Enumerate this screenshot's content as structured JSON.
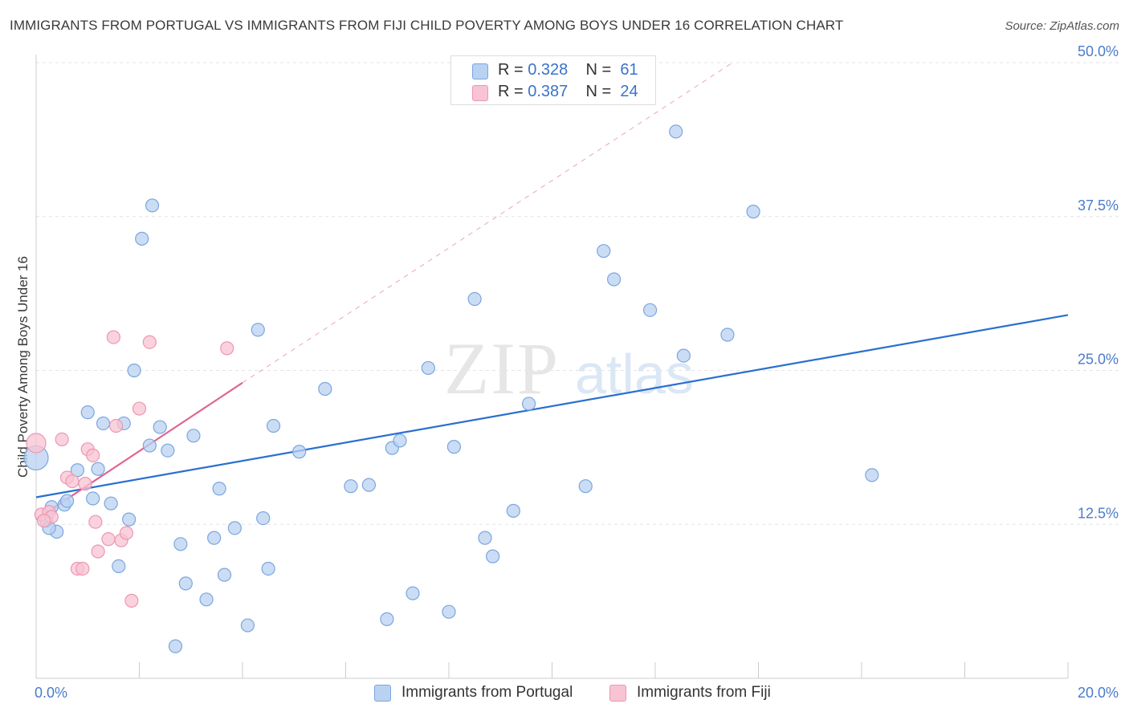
{
  "title": "IMMIGRANTS FROM PORTUGAL VS IMMIGRANTS FROM FIJI CHILD POVERTY AMONG BOYS UNDER 16 CORRELATION CHART",
  "source": "Source: ZipAtlas.com",
  "watermark": {
    "zip": "ZIP",
    "atlas": "atlas"
  },
  "legend": {
    "r_label": "R =",
    "n_label": "N =",
    "portugal": {
      "r": "0.328",
      "n": "61"
    },
    "fiji": {
      "r": "0.387",
      "n": "24"
    }
  },
  "colors": {
    "portugal_fill": "#b9d2f1",
    "portugal_stroke": "#7aa6dd",
    "portugal_line": "#2a6fcf",
    "fiji_fill": "#f8c3d2",
    "fiji_stroke": "#eb97b2",
    "fiji_line": "#e06592",
    "axis_text": "#4a7cc9",
    "grid": "#e3e3e3"
  },
  "chart_data": {
    "type": "scatter",
    "title": "IMMIGRANTS FROM PORTUGAL VS IMMIGRANTS FROM FIJI CHILD POVERTY AMONG BOYS UNDER 16 CORRELATION CHART",
    "xlabel": "",
    "ylabel": "Child Poverty Among Boys Under 16",
    "xlim": [
      0,
      20
    ],
    "ylim": [
      0,
      50
    ],
    "x_tick_labels": [
      {
        "value": 0,
        "label": "0.0%"
      },
      {
        "value": 20,
        "label": "20.0%"
      }
    ],
    "y_tick_labels": [
      {
        "value": 12.5,
        "label": "12.5%"
      },
      {
        "value": 25,
        "label": "25.0%"
      },
      {
        "value": 37.5,
        "label": "37.5%"
      },
      {
        "value": 50,
        "label": "50.0%"
      }
    ],
    "grid": true,
    "legend_position": "top-center",
    "series": [
      {
        "name": "Immigrants from Portugal",
        "r": 0.328,
        "n": 61,
        "points": [
          [
            0.0,
            17.9
          ],
          [
            0.2,
            12.8
          ],
          [
            0.3,
            13.9
          ],
          [
            0.4,
            11.9
          ],
          [
            0.55,
            14.1
          ],
          [
            0.6,
            14.4
          ],
          [
            0.8,
            16.9
          ],
          [
            1.0,
            21.6
          ],
          [
            1.1,
            14.6
          ],
          [
            1.2,
            17.0
          ],
          [
            1.3,
            20.7
          ],
          [
            1.45,
            14.2
          ],
          [
            1.6,
            9.1
          ],
          [
            1.7,
            20.7
          ],
          [
            1.8,
            12.9
          ],
          [
            1.9,
            25.0
          ],
          [
            2.05,
            35.7
          ],
          [
            2.25,
            38.4
          ],
          [
            2.2,
            18.9
          ],
          [
            2.4,
            20.4
          ],
          [
            2.55,
            18.5
          ],
          [
            2.7,
            2.6
          ],
          [
            2.8,
            10.9
          ],
          [
            2.9,
            7.7
          ],
          [
            3.05,
            19.7
          ],
          [
            3.3,
            6.4
          ],
          [
            3.45,
            11.4
          ],
          [
            3.55,
            15.4
          ],
          [
            3.65,
            8.4
          ],
          [
            3.85,
            12.2
          ],
          [
            4.1,
            4.3
          ],
          [
            4.3,
            28.3
          ],
          [
            4.4,
            13.0
          ],
          [
            4.5,
            8.9
          ],
          [
            4.6,
            20.5
          ],
          [
            5.1,
            18.4
          ],
          [
            5.6,
            23.5
          ],
          [
            6.1,
            15.6
          ],
          [
            6.45,
            15.7
          ],
          [
            6.8,
            4.8
          ],
          [
            6.9,
            18.7
          ],
          [
            7.05,
            19.3
          ],
          [
            7.3,
            6.9
          ],
          [
            7.6,
            25.2
          ],
          [
            8.0,
            5.4
          ],
          [
            8.1,
            18.8
          ],
          [
            8.5,
            30.8
          ],
          [
            8.7,
            11.4
          ],
          [
            8.85,
            9.9
          ],
          [
            9.25,
            13.6
          ],
          [
            9.55,
            22.3
          ],
          [
            10.65,
            15.6
          ],
          [
            11.0,
            34.7
          ],
          [
            11.2,
            32.4
          ],
          [
            11.9,
            29.9
          ],
          [
            12.4,
            44.4
          ],
          [
            12.55,
            26.2
          ],
          [
            13.4,
            27.9
          ],
          [
            13.9,
            37.9
          ],
          [
            16.2,
            16.5
          ],
          [
            0.25,
            12.2
          ]
        ]
      },
      {
        "name": "Immigrants from Fiji",
        "r": 0.387,
        "n": 24,
        "points": [
          [
            0.0,
            19.1
          ],
          [
            0.1,
            13.3
          ],
          [
            0.25,
            13.5
          ],
          [
            0.3,
            13.1
          ],
          [
            0.5,
            19.4
          ],
          [
            0.6,
            16.3
          ],
          [
            0.7,
            16.0
          ],
          [
            0.8,
            8.9
          ],
          [
            0.9,
            8.9
          ],
          [
            0.95,
            15.8
          ],
          [
            1.0,
            18.6
          ],
          [
            1.1,
            18.1
          ],
          [
            1.15,
            12.7
          ],
          [
            1.2,
            10.3
          ],
          [
            1.4,
            11.3
          ],
          [
            1.5,
            27.7
          ],
          [
            1.55,
            20.5
          ],
          [
            1.65,
            11.2
          ],
          [
            1.75,
            11.8
          ],
          [
            1.85,
            6.3
          ],
          [
            2.0,
            21.9
          ],
          [
            2.2,
            27.3
          ],
          [
            3.7,
            26.8
          ],
          [
            0.15,
            12.8
          ]
        ]
      }
    ],
    "trend_lines": [
      {
        "series": "Immigrants from Portugal",
        "from": [
          0,
          14.7
        ],
        "to": [
          20,
          29.5
        ],
        "style": "solid"
      },
      {
        "series": "Immigrants from Fiji",
        "from": [
          0,
          12.9
        ],
        "to": [
          4.0,
          24.0
        ],
        "style": "solid"
      },
      {
        "series": "Immigrants from Fiji",
        "from": [
          4.0,
          24.0
        ],
        "to": [
          13.5,
          50.0
        ],
        "style": "dashed"
      }
    ]
  },
  "bottom_legend": {
    "portugal": "Immigrants from Portugal",
    "fiji": "Immigrants from Fiji"
  }
}
